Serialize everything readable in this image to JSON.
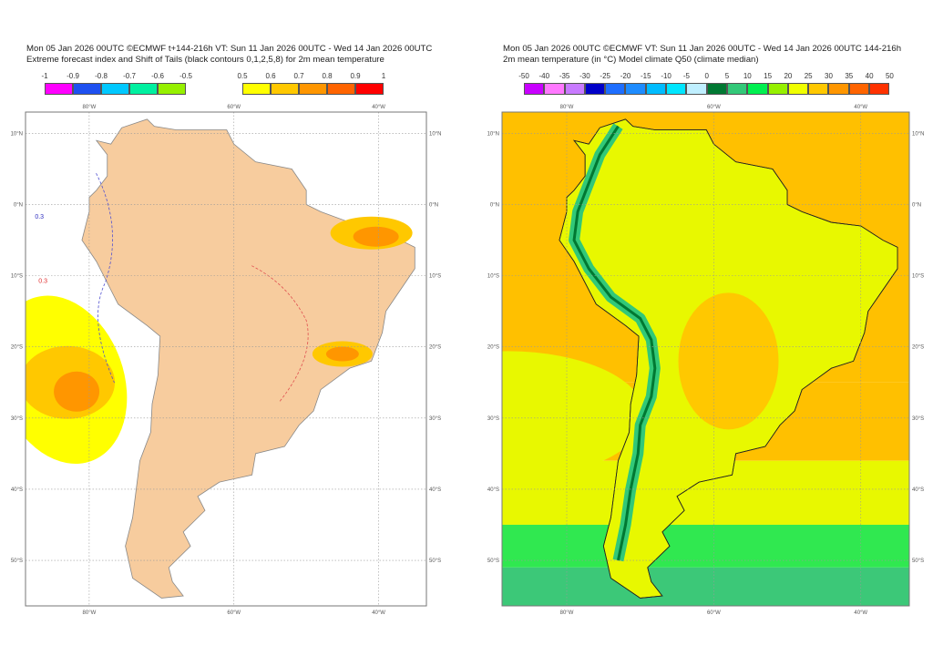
{
  "left_panel": {
    "title_line1": "Mon 05 Jan 2026 00UTC ©ECMWF t+144-216h  VT: Sun 11 Jan 2026 00UTC - Wed 14 Jan 2026 00UTC",
    "title_line2": "Extreme forecast index and Shift of Tails (black contours 0,1,2,5,8) for 2m mean temperature",
    "colorbar_neg": {
      "labels": [
        "-1",
        "-0.9",
        "-0.8",
        "-0.7",
        "-0.6",
        "-0.5"
      ],
      "colors": [
        "#ff00ff",
        "#1e50f0",
        "#00c8ff",
        "#00f0a0",
        "#96f000"
      ]
    },
    "colorbar_pos": {
      "labels": [
        "0.5",
        "0.6",
        "0.7",
        "0.8",
        "0.9",
        "1"
      ],
      "colors": [
        "#ffff00",
        "#ffc800",
        "#ff9600",
        "#ff6400",
        "#ff0000"
      ]
    },
    "contour_label": "0.3",
    "land_color": "#f7cc9e"
  },
  "right_panel": {
    "title_line1": "Mon 05 Jan 2026 00UTC ©ECMWF VT: Sun 11 Jan 2026 00UTC - Wed 14 Jan 2026 00UTC   144-216h",
    "title_line2": "2m mean temperature (in °C)  Model climate Q50 (climate median)",
    "colorbar": {
      "labels": [
        "-50",
        "-40",
        "-35",
        "-30",
        "-25",
        "-20",
        "-15",
        "-10",
        "-5",
        "0",
        "5",
        "10",
        "15",
        "20",
        "25",
        "30",
        "35",
        "40",
        "50"
      ],
      "colors": [
        "#c800ff",
        "#ff78ff",
        "#c87aff",
        "#0000c8",
        "#1e6eff",
        "#1e8cff",
        "#00bcff",
        "#00e6ff",
        "#bfefff",
        "#007832",
        "#32c878",
        "#00f050",
        "#96f000",
        "#f0ff00",
        "#ffc800",
        "#ff9600",
        "#ff6400",
        "#ff3200"
      ]
    }
  },
  "axes": {
    "lon_labels": [
      "80°W",
      "60°W",
      "40°W"
    ],
    "lat_labels": [
      "10°N",
      "0°N",
      "10°S",
      "20°S",
      "30°S",
      "40°S",
      "50°S"
    ]
  }
}
